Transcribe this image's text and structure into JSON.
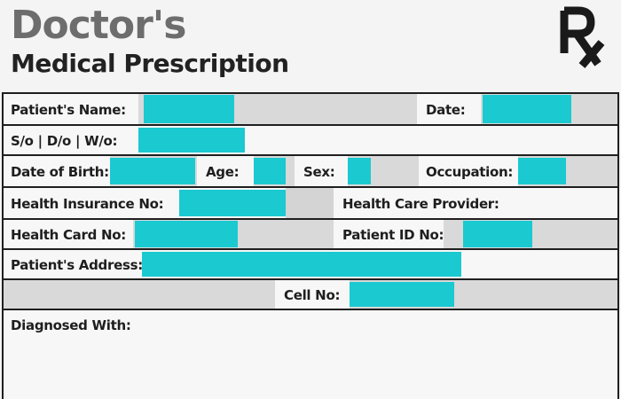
{
  "header": {
    "brand": "Doctor's",
    "subtitle": "Medical Prescription",
    "rx_symbol": "Rx"
  },
  "form": {
    "patient_name_label": "Patient's Name:",
    "date_label": "Date:",
    "relation_label": "S/o | D/o | W/o:",
    "dob_label": "Date of Birth:",
    "age_label": "Age:",
    "sex_label": "Sex:",
    "occupation_label": "Occupation:",
    "insurance_label": "Health Insurance No:",
    "provider_label": "Health Care Provider:",
    "card_label": "Health Card No:",
    "patient_id_label": "Patient ID No:",
    "address_label": "Patient's Address:",
    "cell_label": "Cell No:",
    "diagnosis_label": "Diagnosed With:"
  },
  "colors": {
    "highlight": "#1bc9d1",
    "field_gray": "#d4d4d4",
    "border": "#1f1f1f"
  }
}
